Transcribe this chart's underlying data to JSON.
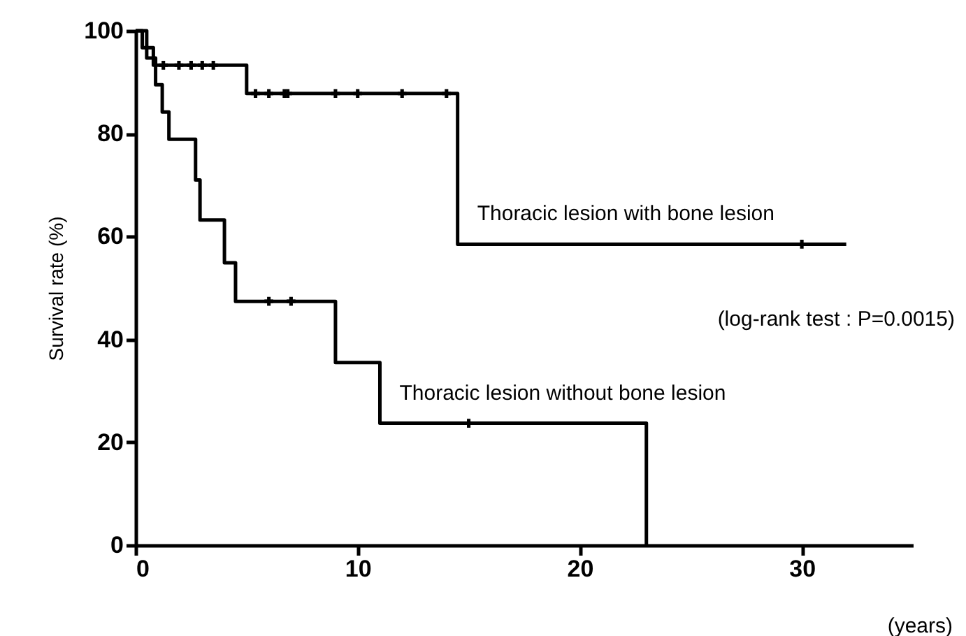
{
  "chart_data": {
    "type": "step",
    "xlabel": "(years)",
    "ylabel": "Survival rate (%)",
    "xlim": [
      0,
      35
    ],
    "xticks": [
      0,
      10,
      20,
      30
    ],
    "ylim": [
      0,
      100
    ],
    "yticks": [
      0,
      20,
      40,
      60,
      80,
      100
    ],
    "grid": false,
    "line_style": "solid",
    "series": [
      {
        "name": "Thoracic lesion with bone lesion",
        "color": "#000000",
        "x": [
          0,
          0.3,
          0.8,
          5.0,
          14.5,
          32
        ],
        "values": [
          100,
          96.7,
          93.3,
          87.8,
          58.5,
          58.5
        ]
      },
      {
        "name": "Thoracic lesion without bone lesion",
        "color": "#000000",
        "x": [
          0,
          0.5,
          0.9,
          1.2,
          1.5,
          2.7,
          2.9,
          4.0,
          4.5,
          9.0,
          11.0,
          23.0
        ],
        "values": [
          100,
          94.7,
          89.5,
          84.2,
          78.9,
          71,
          63.2,
          54.9,
          47.4,
          35.5,
          23.7,
          0
        ]
      },
      {
        "type": "scatter",
        "marker": "cross",
        "color": "#000000",
        "x": [
          1.25,
          1.95,
          2.5,
          3.0,
          3.5,
          5.4,
          6.0,
          6.7,
          6.85,
          9.0,
          10.0,
          12.0,
          14.0,
          30.0
        ],
        "values": [
          93.3,
          93.3,
          93.3,
          93.3,
          93.3,
          87.8,
          87.8,
          87.8,
          87.8,
          87.8,
          87.8,
          87.8,
          87.8,
          58.5
        ]
      },
      {
        "type": "scatter",
        "marker": "cross",
        "color": "#000000",
        "x": [
          6.0,
          7.0,
          15.0
        ],
        "values": [
          47.4,
          47.4,
          23.7
        ]
      }
    ],
    "annotations": [
      "(log-rank test : P=0.0015)"
    ]
  }
}
